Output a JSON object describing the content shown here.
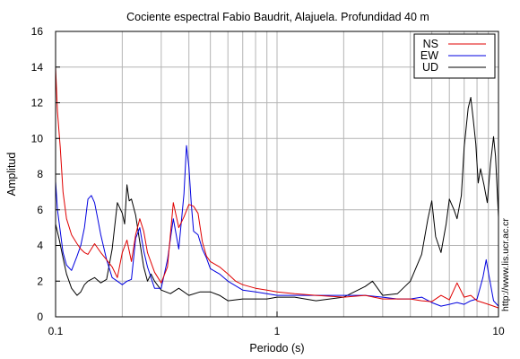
{
  "chart_data": {
    "type": "line",
    "title": "Cociente espectral Fabio Baudrit, Alajuela. Profundidad 40 m",
    "xlabel": "Periodo (s)",
    "ylabel": "Amplitud",
    "xscale": "log",
    "xlim": [
      0.1,
      10
    ],
    "ylim": [
      0,
      16
    ],
    "xticks": [
      0.1,
      1,
      10
    ],
    "xtick_labels": [
      "0.1",
      "1",
      "10"
    ],
    "yticks": [
      0,
      2,
      4,
      6,
      8,
      10,
      12,
      14,
      16
    ],
    "ytick_labels": [
      "0",
      "2",
      "4",
      "6",
      "8",
      "10",
      "12",
      "14",
      "16"
    ],
    "grid": true,
    "legend_position": "top-right",
    "credit": "http://www.lis.ucr.ac.cr",
    "series": [
      {
        "name": "NS",
        "color": "#e00000",
        "x": [
          0.1,
          0.102,
          0.105,
          0.108,
          0.112,
          0.118,
          0.125,
          0.13,
          0.135,
          0.14,
          0.15,
          0.16,
          0.17,
          0.18,
          0.19,
          0.2,
          0.21,
          0.22,
          0.23,
          0.24,
          0.25,
          0.26,
          0.28,
          0.3,
          0.32,
          0.34,
          0.36,
          0.38,
          0.4,
          0.42,
          0.44,
          0.46,
          0.48,
          0.5,
          0.55,
          0.6,
          0.65,
          0.7,
          0.8,
          0.9,
          1.0,
          1.2,
          1.5,
          2.0,
          2.5,
          3.0,
          3.5,
          4.0,
          4.5,
          5.0,
          5.5,
          6.0,
          6.5,
          7.0,
          7.5,
          8.0,
          8.5,
          9.0,
          9.5,
          10.0
        ],
        "values": [
          14.0,
          11.5,
          9.5,
          7.0,
          5.5,
          4.6,
          4.1,
          3.8,
          3.6,
          3.5,
          4.1,
          3.6,
          3.2,
          2.8,
          2.2,
          3.6,
          4.3,
          3.1,
          4.6,
          5.5,
          4.8,
          3.6,
          2.5,
          1.9,
          2.8,
          6.4,
          5.0,
          5.6,
          6.3,
          6.2,
          5.8,
          4.2,
          3.4,
          3.1,
          2.8,
          2.4,
          2.0,
          1.8,
          1.6,
          1.5,
          1.4,
          1.3,
          1.2,
          1.1,
          1.2,
          1.0,
          1.0,
          1.0,
          0.9,
          0.85,
          1.2,
          0.95,
          1.9,
          1.1,
          1.2,
          0.9,
          0.8,
          0.7,
          0.6,
          0.5
        ]
      },
      {
        "name": "EW",
        "color": "#0000e0",
        "x": [
          0.1,
          0.102,
          0.105,
          0.108,
          0.112,
          0.118,
          0.125,
          0.13,
          0.135,
          0.14,
          0.145,
          0.15,
          0.155,
          0.16,
          0.17,
          0.18,
          0.19,
          0.2,
          0.21,
          0.22,
          0.23,
          0.24,
          0.25,
          0.26,
          0.28,
          0.3,
          0.32,
          0.34,
          0.36,
          0.38,
          0.39,
          0.4,
          0.41,
          0.42,
          0.44,
          0.46,
          0.48,
          0.5,
          0.55,
          0.6,
          0.7,
          0.8,
          0.9,
          1.0,
          1.2,
          1.5,
          2.0,
          2.5,
          3.0,
          3.5,
          4.0,
          4.5,
          5.0,
          5.5,
          6.0,
          6.5,
          7.0,
          7.5,
          8.0,
          8.5,
          8.8,
          9.0,
          9.5,
          10.0
        ],
        "values": [
          7.6,
          6.0,
          4.8,
          3.6,
          2.9,
          2.6,
          3.4,
          4.0,
          5.0,
          6.6,
          6.8,
          6.4,
          5.5,
          4.6,
          3.2,
          2.2,
          2.0,
          1.8,
          2.0,
          2.1,
          4.4,
          5.0,
          3.7,
          2.8,
          1.6,
          1.6,
          3.2,
          5.5,
          3.8,
          6.9,
          9.6,
          8.4,
          6.3,
          4.8,
          4.6,
          3.8,
          3.3,
          2.7,
          2.4,
          2.0,
          1.5,
          1.4,
          1.3,
          1.2,
          1.2,
          1.2,
          1.2,
          1.2,
          1.1,
          1.0,
          1.0,
          1.1,
          0.8,
          0.6,
          0.7,
          0.8,
          0.7,
          0.9,
          1.0,
          2.2,
          3.2,
          2.5,
          0.9,
          0.6
        ]
      },
      {
        "name": "UD",
        "color": "#000000",
        "x": [
          0.1,
          0.104,
          0.108,
          0.112,
          0.118,
          0.125,
          0.13,
          0.135,
          0.14,
          0.15,
          0.16,
          0.17,
          0.18,
          0.19,
          0.2,
          0.205,
          0.21,
          0.215,
          0.22,
          0.23,
          0.24,
          0.25,
          0.26,
          0.27,
          0.28,
          0.3,
          0.33,
          0.36,
          0.4,
          0.45,
          0.5,
          0.55,
          0.6,
          0.7,
          0.8,
          0.9,
          1.0,
          1.2,
          1.5,
          2.0,
          2.5,
          2.7,
          3.0,
          3.5,
          4.0,
          4.5,
          4.8,
          5.0,
          5.2,
          5.5,
          5.8,
          6.0,
          6.3,
          6.5,
          6.8,
          7.0,
          7.3,
          7.5,
          7.7,
          7.9,
          8.1,
          8.3,
          8.6,
          8.9,
          9.2,
          9.5,
          9.7,
          10.0
        ],
        "values": [
          5.2,
          4.3,
          3.3,
          2.4,
          1.6,
          1.2,
          1.4,
          1.8,
          2.0,
          2.2,
          1.9,
          2.1,
          3.8,
          6.4,
          5.8,
          5.2,
          7.4,
          6.5,
          6.6,
          5.7,
          4.2,
          2.8,
          2.0,
          2.4,
          2.0,
          1.5,
          1.3,
          1.6,
          1.2,
          1.4,
          1.4,
          1.2,
          0.9,
          1.0,
          1.0,
          1.0,
          1.1,
          1.1,
          0.9,
          1.1,
          1.7,
          2.0,
          1.2,
          1.3,
          2.0,
          3.5,
          5.5,
          6.5,
          4.5,
          3.6,
          5.2,
          6.6,
          6.0,
          5.5,
          6.8,
          9.5,
          11.7,
          12.3,
          11.0,
          9.7,
          7.5,
          8.3,
          7.4,
          6.4,
          8.6,
          10.1,
          9.0,
          5.6
        ]
      }
    ]
  }
}
